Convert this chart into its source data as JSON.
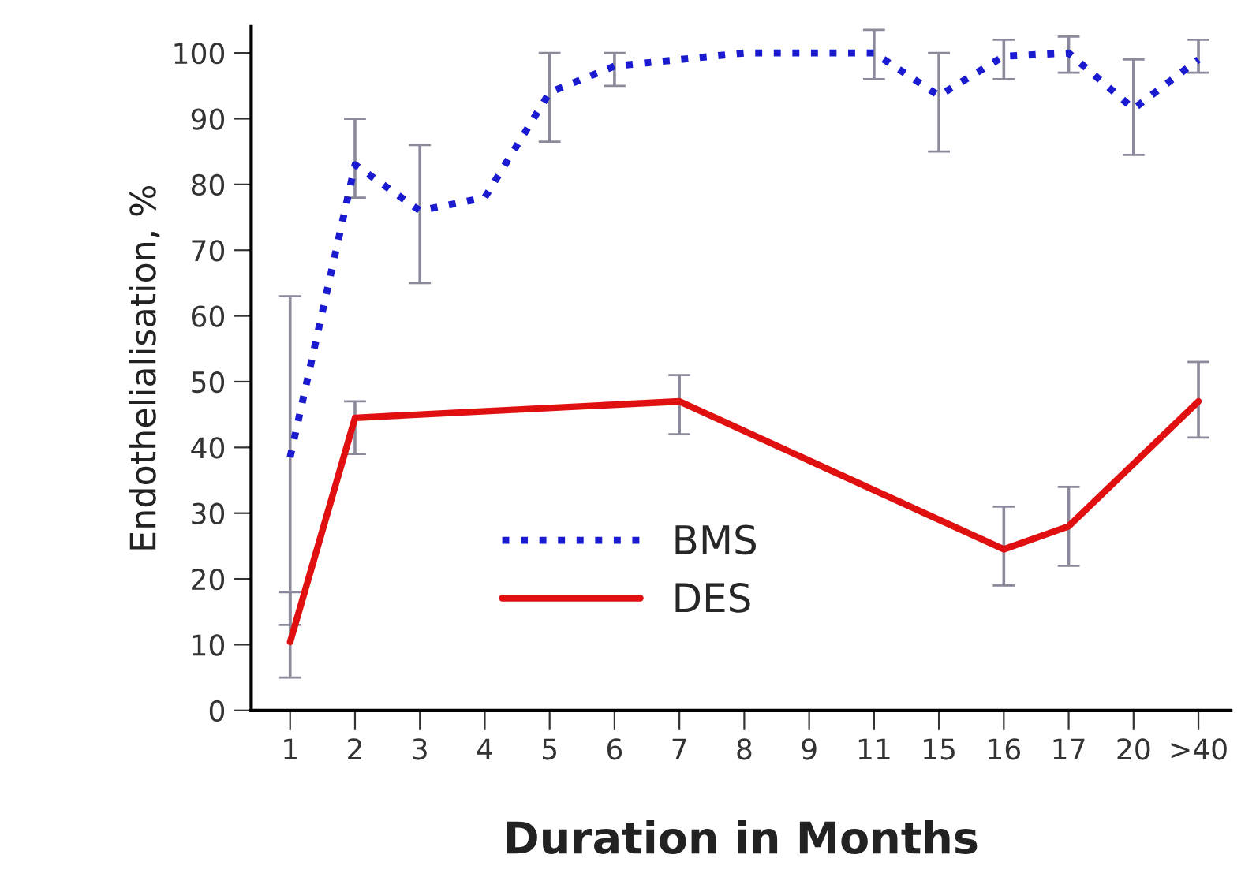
{
  "chart_data": {
    "type": "line",
    "xlabel": "Duration in Months",
    "ylabel": "Endothelialisation, %",
    "categories": [
      "1",
      "2",
      "3",
      "4",
      "5",
      "6",
      "7",
      "8",
      "9",
      "11",
      "15",
      "16",
      "17",
      "20",
      ">40"
    ],
    "series": [
      {
        "name": "BMS",
        "color": "#1a1ad0",
        "line_style": "dotted",
        "values": [
          38.5,
          83,
          76,
          78,
          94,
          98,
          99,
          100,
          100,
          100,
          93.5,
          99.5,
          100,
          91.5,
          99
        ],
        "errors": [
          [
            13,
            63
          ],
          [
            78,
            90
          ],
          [
            65,
            86
          ],
          null,
          [
            86.5,
            100
          ],
          [
            95,
            100
          ],
          null,
          null,
          null,
          [
            96,
            103.5
          ],
          [
            85,
            100
          ],
          [
            96,
            102
          ],
          [
            97,
            102.5
          ],
          [
            84.5,
            99
          ],
          [
            97,
            102
          ]
        ]
      },
      {
        "name": "DES",
        "color": "#e01010",
        "line_style": "solid",
        "values": [
          10.4,
          44.5,
          null,
          null,
          null,
          null,
          47,
          null,
          null,
          null,
          null,
          24.5,
          28,
          null,
          47
        ],
        "errors": [
          [
            5,
            18
          ],
          [
            39,
            47
          ],
          null,
          null,
          null,
          null,
          [
            42,
            51
          ],
          null,
          null,
          null,
          null,
          [
            19,
            31
          ],
          [
            22,
            34
          ],
          null,
          [
            41.5,
            53
          ]
        ]
      }
    ],
    "ylim": [
      0,
      104
    ],
    "yticks": [
      0,
      10,
      20,
      30,
      40,
      50,
      60,
      70,
      80,
      90,
      100
    ],
    "grid": false,
    "legend": "bottom left",
    "marker": "none"
  }
}
